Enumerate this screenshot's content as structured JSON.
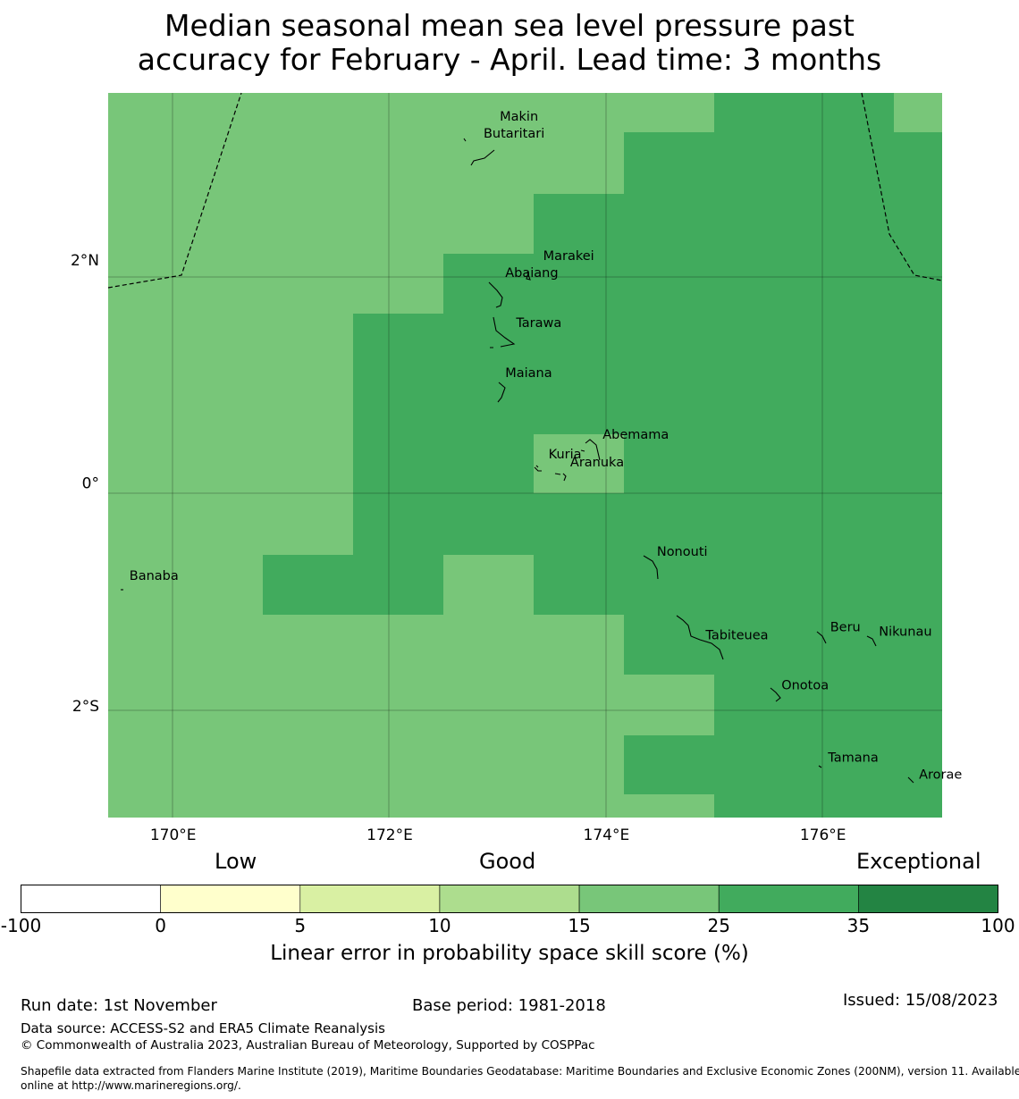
{
  "title": {
    "line1": "Median seasonal mean sea level pressure past",
    "line2": "accuracy for February - April. Lead time: 3 months"
  },
  "map": {
    "lon_range": [
      169.4,
      177.1
    ],
    "lat_range": [
      -3.0,
      3.5
    ],
    "x_ticks": [
      {
        "value": 170,
        "label": "170°E"
      },
      {
        "value": 172,
        "label": "172°E"
      },
      {
        "value": 174,
        "label": "174°E"
      },
      {
        "value": 176,
        "label": "176°E"
      }
    ],
    "y_ticks": [
      {
        "value": 2,
        "label": "2°N"
      },
      {
        "value": 0,
        "label": "0°"
      },
      {
        "value": -2,
        "label": "2°S"
      }
    ],
    "places": [
      {
        "name": "Makin",
        "lon": 172.95,
        "lat": 3.25
      },
      {
        "name": "Butaritari",
        "lon": 172.8,
        "lat": 3.1
      },
      {
        "name": "Marakei",
        "lon": 173.35,
        "lat": 2.0
      },
      {
        "name": "Abaiang",
        "lon": 173.0,
        "lat": 1.85
      },
      {
        "name": "Tarawa",
        "lon": 173.1,
        "lat": 1.4
      },
      {
        "name": "Maiana",
        "lon": 173.0,
        "lat": 0.95
      },
      {
        "name": "Abemama",
        "lon": 173.9,
        "lat": 0.4
      },
      {
        "name": "Kuria",
        "lon": 173.4,
        "lat": 0.22
      },
      {
        "name": "Aranuka",
        "lon": 173.6,
        "lat": 0.15
      },
      {
        "name": "Banaba",
        "lon": 169.53,
        "lat": -0.87
      },
      {
        "name": "Nonouti",
        "lon": 174.4,
        "lat": -0.65
      },
      {
        "name": "Tabiteuea",
        "lon": 174.85,
        "lat": -1.4
      },
      {
        "name": "Beru",
        "lon": 176.0,
        "lat": -1.33
      },
      {
        "name": "Nikunau",
        "lon": 176.45,
        "lat": -1.37
      },
      {
        "name": "Onotoa",
        "lon": 175.55,
        "lat": -1.85
      },
      {
        "name": "Tamana",
        "lon": 175.98,
        "lat": -2.5
      },
      {
        "name": "Arorae",
        "lon": 176.82,
        "lat": -2.65
      }
    ],
    "colors": {
      "light_green": "#78c679",
      "mid_green": "#41ab5d"
    }
  },
  "legend": {
    "low": "Low",
    "good": "Good",
    "exceptional": "Exceptional",
    "categories": [
      {
        "from": "-100",
        "to": "0",
        "color": "#ffffff"
      },
      {
        "from": "0",
        "to": "5",
        "color": "#ffffcc"
      },
      {
        "from": "5",
        "to": "10",
        "color": "#d9f0a3"
      },
      {
        "from": "10",
        "to": "15",
        "color": "#addd8e"
      },
      {
        "from": "15",
        "to": "25",
        "color": "#78c679"
      },
      {
        "from": "25",
        "to": "35",
        "color": "#41ab5d"
      },
      {
        "from": "35",
        "to": "100",
        "color": "#238443"
      }
    ],
    "ticks": [
      "-100",
      "0",
      "5",
      "10",
      "15",
      "25",
      "35",
      "100"
    ],
    "label": "Linear error in probability space skill score (%)"
  },
  "footer": {
    "run_date": "Run date: 1st November",
    "base_period": "Base period: 1981-2018",
    "issued": "Issued: 15/08/2023",
    "data_source": "Data source: ACCESS-S2 and ERA5 Climate Reanalysis",
    "copyright": "© Commonwealth of Australia 2023, Australian Bureau of Meteorology, Supported by COSPPac",
    "shapefile_line1": "Shapefile data extracted from Flanders Marine Institute (2019), Maritime Boundaries Geodatabase: Maritime Boundaries and Exclusive Economic Zones (200NM), version 11. Available",
    "shapefile_line2": "online at http://www.marineregions.org/."
  }
}
